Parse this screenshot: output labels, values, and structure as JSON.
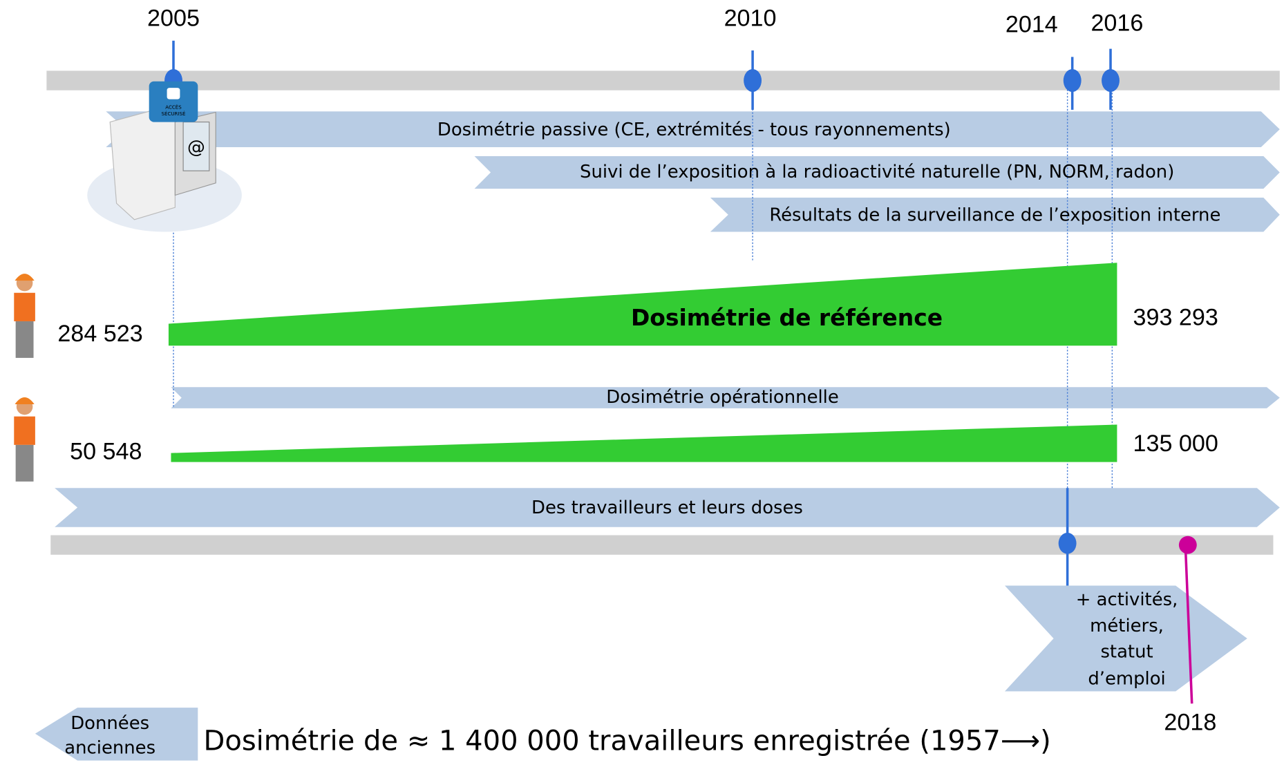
{
  "years": [
    "2005",
    "2010",
    "2014",
    "2016",
    "2018"
  ],
  "icon_label": [
    "ACCÈS",
    "SÉCURISÉ"
  ],
  "bands": [
    "Dosimétrie passive (CE, extrémités - tous rayonnements)",
    "Suivi de l’exposition à la radioactivité naturelle (PN, NORM, radon)",
    "Résultats de la surveillance de l’exposition interne",
    "Dosimétrie opérationnelle",
    "Des travailleurs et leurs doses"
  ],
  "reference": {
    "label": "Dosimétrie de référence",
    "start": "284 523",
    "end": "393 293"
  },
  "operational": {
    "start": "50 548",
    "end": "135 000"
  },
  "extension": [
    "+ activités,",
    "métiers,",
    "statut",
    "d’emploi"
  ],
  "legacy": [
    "Données",
    "anciennes"
  ],
  "footer": "Dosimétrie de ≈ 1 400 000 travailleurs enregistrée (1957⟶)"
}
